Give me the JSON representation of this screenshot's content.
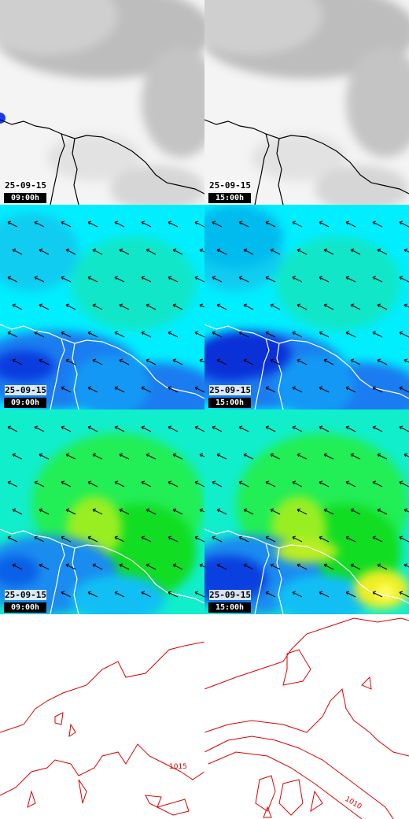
{
  "rows": [
    {
      "panels": [
        {
          "date": "25-09-15",
          "time": "09:00h"
        },
        {
          "date": "25-09-15",
          "time": "15:00h"
        }
      ]
    },
    {
      "panels": [
        {
          "date": "25-09-15",
          "time": "09:00h"
        },
        {
          "date": "25-09-15",
          "time": "15:00h"
        }
      ]
    },
    {
      "panels": [
        {
          "date": "25-09-15",
          "time": "09:00h"
        },
        {
          "date": "25-09-15",
          "time": "15:00h"
        }
      ]
    }
  ],
  "contours": {
    "left": "1015",
    "right": "1010"
  }
}
